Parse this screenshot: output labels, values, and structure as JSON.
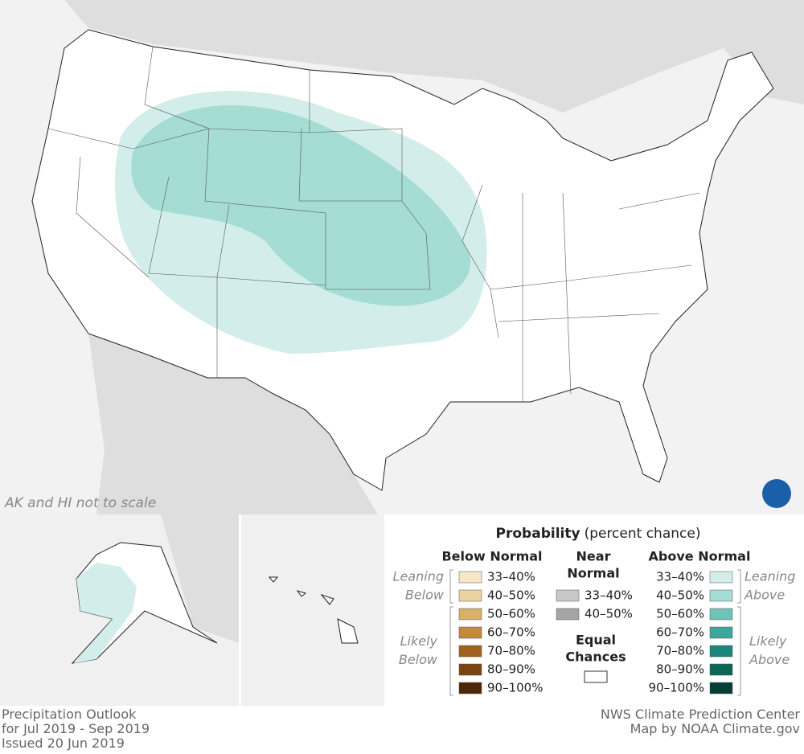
{
  "map_note": "AK and HI not to scale",
  "legend": {
    "title": "Probability",
    "subtitle": "(percent chance)",
    "below": {
      "heading": "Below Normal",
      "leaning": [
        "Leaning",
        "Below"
      ],
      "likely": [
        "Likely",
        "Below"
      ],
      "items": [
        {
          "label": "33–40%",
          "color": "#f6e8c7"
        },
        {
          "label": "40–50%",
          "color": "#ebd39f"
        },
        {
          "label": "50–60%",
          "color": "#d7b06a"
        },
        {
          "label": "60–70%",
          "color": "#c48a3c"
        },
        {
          "label": "70–80%",
          "color": "#a2611e"
        },
        {
          "label": "80–90%",
          "color": "#7a4410"
        },
        {
          "label": "90–100%",
          "color": "#4c2806"
        }
      ]
    },
    "near": {
      "heading": [
        "Near",
        "Normal"
      ],
      "items": [
        {
          "label": "33–40%",
          "color": "#c8c8c8"
        },
        {
          "label": "40–50%",
          "color": "#a5a5a5"
        }
      ]
    },
    "equal": {
      "heading": [
        "Equal",
        "Chances"
      ],
      "color": "#ffffff"
    },
    "above": {
      "heading": "Above Normal",
      "leaning": [
        "Leaning",
        "Above"
      ],
      "likely": [
        "Likely",
        "Above"
      ],
      "items": [
        {
          "label": "33–40%",
          "color": "#d3eeea"
        },
        {
          "label": "40–50%",
          "color": "#a5ddd4"
        },
        {
          "label": "50–60%",
          "color": "#6ec4b8"
        },
        {
          "label": "60–70%",
          "color": "#3ca79b"
        },
        {
          "label": "70–80%",
          "color": "#1e857a"
        },
        {
          "label": "80–90%",
          "color": "#0c6656"
        },
        {
          "label": "90–100%",
          "color": "#053f33"
        }
      ]
    }
  },
  "footer": {
    "left": [
      "Precipitation Outlook",
      "for Jul 2019 - Sep 2019",
      "Issued 20 Jun 2019"
    ],
    "right": [
      "NWS Climate Prediction Center",
      "Map by NOAA Climate.gov"
    ]
  }
}
